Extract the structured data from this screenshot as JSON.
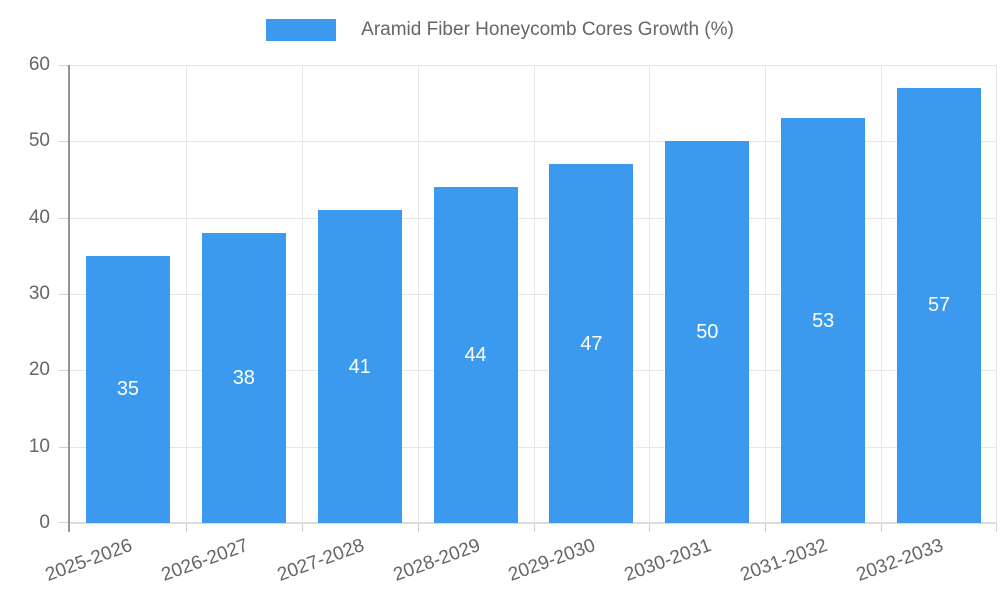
{
  "legend": {
    "label": "Aramid Fiber Honeycomb Cores Growth (%)"
  },
  "colors": {
    "bar": "#3B9AED",
    "grid": "#E6E6E6",
    "axis": "#949494",
    "baseline": "#DCDCDC",
    "tick": "#D2D2D2",
    "tick_text": "#666666",
    "legend_text": "#666666",
    "value_label": "#FFFFFF",
    "background": "#FFFFFF"
  },
  "chart_data": {
    "type": "bar",
    "title": "Aramid Fiber Honeycomb Cores Growth (%)",
    "series_name": "Aramid Fiber Honeycomb Cores Growth (%)",
    "categories": [
      "2025-2026",
      "2026-2027",
      "2027-2028",
      "2028-2029",
      "2029-2030",
      "2030-2031",
      "2031-2032",
      "2032-2033"
    ],
    "values": [
      35,
      38,
      41,
      44,
      47,
      50,
      53,
      57
    ],
    "xlabel": "",
    "ylabel": "",
    "ylim": [
      0,
      60
    ],
    "yticks": [
      0,
      10,
      20,
      30,
      40,
      50,
      60
    ],
    "grid": true,
    "legend_position": "top",
    "value_labels": "inside-center",
    "x_label_rotation_deg": -20
  }
}
